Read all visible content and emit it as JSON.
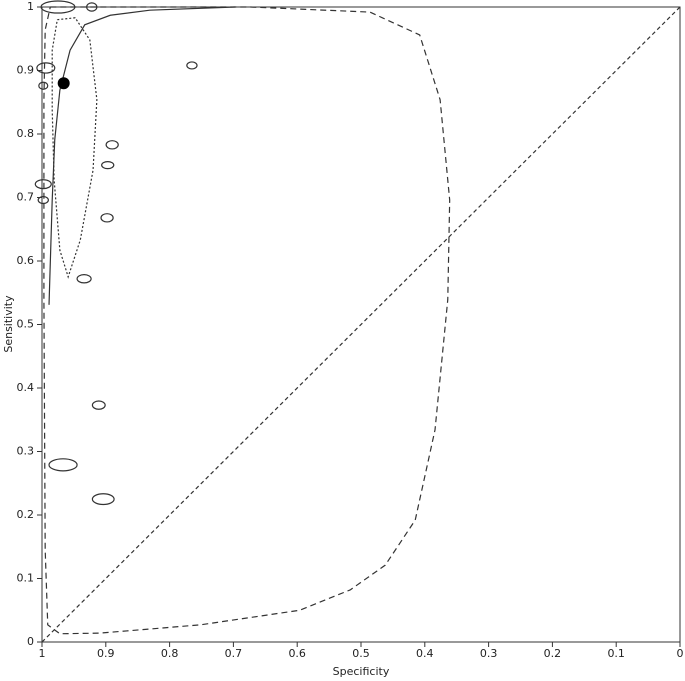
{
  "chart_data": {
    "type": "scatter",
    "xlabel": "Specificity",
    "ylabel": "Sensitivity",
    "xlim": [
      1,
      0
    ],
    "ylim": [
      0,
      1
    ],
    "xticks": [
      1,
      0.9,
      0.8,
      0.7,
      0.6,
      0.5,
      0.4,
      0.3,
      0.2,
      0.1,
      0
    ],
    "yticks": [
      0,
      0.1,
      0.2,
      0.3,
      0.4,
      0.5,
      0.6,
      0.7,
      0.8,
      0.9,
      1
    ],
    "color": "#333333",
    "studies": {
      "x": [
        0.975,
        0.922,
        0.765,
        0.994,
        0.998,
        0.89,
        0.897,
        0.998,
        0.998,
        0.898,
        0.934,
        0.911,
        0.967,
        0.904
      ],
      "values": [
        1.0,
        1.0,
        0.908,
        0.904,
        0.876,
        0.783,
        0.751,
        0.721,
        0.696,
        0.668,
        0.572,
        0.373,
        0.279,
        0.225
      ],
      "widths": [
        0.053,
        0.016,
        0.016,
        0.028,
        0.014,
        0.019,
        0.019,
        0.025,
        0.016,
        0.019,
        0.022,
        0.02,
        0.044,
        0.034
      ],
      "heights": [
        0.019,
        0.013,
        0.011,
        0.016,
        0.011,
        0.013,
        0.011,
        0.014,
        0.011,
        0.013,
        0.013,
        0.013,
        0.019,
        0.017
      ]
    },
    "summary": {
      "x": 0.966,
      "value": 0.88
    },
    "sroc_curve": {
      "x": [
        0.989,
        0.984,
        0.98,
        0.972,
        0.956,
        0.933,
        0.893,
        0.831,
        0.697
      ],
      "values": [
        0.531,
        0.696,
        0.791,
        0.869,
        0.932,
        0.972,
        0.987,
        0.995,
        1.0
      ]
    },
    "confidence_region": {
      "x": [
        0.976,
        0.948,
        0.925,
        0.914,
        0.92,
        0.94,
        0.959,
        0.972,
        0.981,
        0.984,
        0.984,
        0.976
      ],
      "values": [
        0.98,
        0.983,
        0.948,
        0.854,
        0.743,
        0.633,
        0.575,
        0.617,
        0.728,
        0.838,
        0.932,
        0.98
      ]
    },
    "prediction_region": {
      "x": [
        0.987,
        0.674,
        0.486,
        0.408,
        0.376,
        0.361,
        0.364,
        0.384,
        0.415,
        0.462,
        0.517,
        0.596,
        0.752,
        0.909,
        0.972,
        0.991,
        0.995,
        0.997,
        0.997,
        0.995,
        0.987
      ],
      "values": [
        1.0,
        1.0,
        0.992,
        0.956,
        0.854,
        0.696,
        0.539,
        0.334,
        0.192,
        0.121,
        0.082,
        0.05,
        0.027,
        0.014,
        0.013,
        0.027,
        0.145,
        0.539,
        0.854,
        0.964,
        1.0
      ]
    },
    "diagonal": {
      "x": [
        1,
        0
      ],
      "values": [
        0,
        1
      ]
    }
  }
}
